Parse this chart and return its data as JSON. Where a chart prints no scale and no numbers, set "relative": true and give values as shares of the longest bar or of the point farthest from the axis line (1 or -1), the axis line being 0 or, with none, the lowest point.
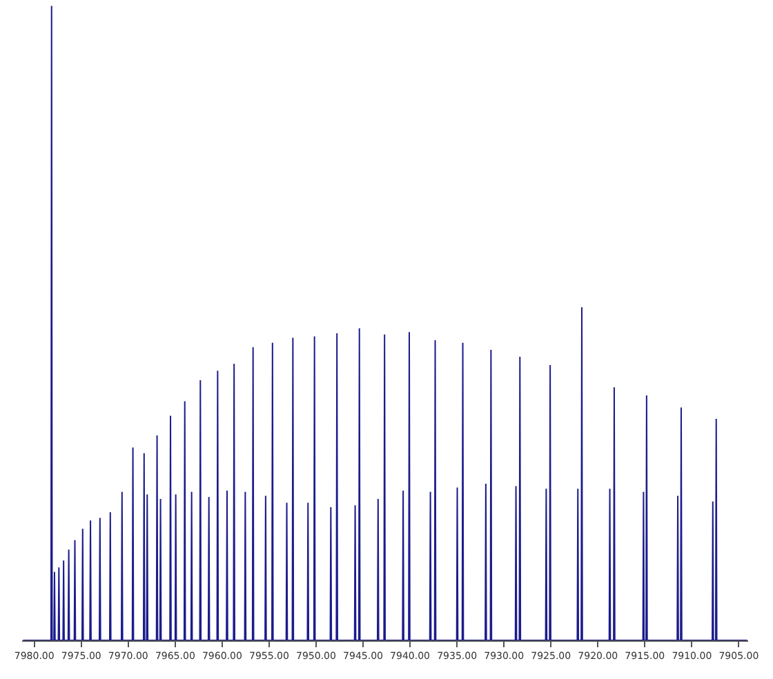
{
  "chart_data": {
    "type": "line",
    "relative": true,
    "line_style": "solid",
    "marker": "none",
    "grid": false,
    "tick_labels": "x",
    "xlim": [
      7981.3,
      7904.0
    ],
    "xticks": [
      {
        "value": 7980,
        "label": "7980.00"
      },
      {
        "value": 7975,
        "label": "7975.00"
      },
      {
        "value": 7970,
        "label": "7970.00"
      },
      {
        "value": 7965,
        "label": "7965.00"
      },
      {
        "value": 7960,
        "label": "7960.00"
      },
      {
        "value": 7955,
        "label": "7955.00"
      },
      {
        "value": 7950,
        "label": "7950.00"
      },
      {
        "value": 7945,
        "label": "7945.00"
      },
      {
        "value": 7940,
        "label": "7940.00"
      },
      {
        "value": 7935,
        "label": "7935.00"
      },
      {
        "value": 7930,
        "label": "7930.00"
      },
      {
        "value": 7925,
        "label": "7925.00"
      },
      {
        "value": 7920,
        "label": "7920.00"
      },
      {
        "value": 7915,
        "label": "7915.00"
      },
      {
        "value": 7910,
        "label": "7910.00"
      },
      {
        "value": 7905,
        "label": "7905.00"
      }
    ],
    "series": [
      {
        "color": "#1c1c8c",
        "x": [
          7981.2,
          7978.22,
          7978.16,
          7978.1,
          7977.91,
          7977.85,
          7977.79,
          7977.44,
          7977.38,
          7977.32,
          7976.94,
          7976.88,
          7976.82,
          7976.39,
          7976.33,
          7976.27,
          7975.74,
          7975.68,
          7975.62,
          7974.91,
          7974.85,
          7974.79,
          7974.08,
          7974.02,
          7973.96,
          7973.07,
          7973.01,
          7972.95,
          7971.97,
          7971.91,
          7971.85,
          7970.72,
          7970.66,
          7970.6,
          7969.56,
          7969.5,
          7969.44,
          7968.37,
          7968.31,
          7968.25,
          7968.04,
          7967.98,
          7967.92,
          7966.99,
          7966.93,
          7966.87,
          7966.62,
          7966.56,
          7966.5,
          7965.56,
          7965.5,
          7965.44,
          7965.0,
          7964.94,
          7964.88,
          7964.04,
          7963.98,
          7963.92,
          7963.31,
          7963.25,
          7963.19,
          7962.38,
          7962.32,
          7962.26,
          7961.47,
          7961.41,
          7961.35,
          7960.54,
          7960.48,
          7960.42,
          7959.54,
          7959.48,
          7959.42,
          7958.79,
          7958.73,
          7958.67,
          7957.6,
          7957.54,
          7957.48,
          7956.77,
          7956.71,
          7956.65,
          7955.43,
          7955.37,
          7955.31,
          7954.7,
          7954.64,
          7954.58,
          7953.18,
          7953.12,
          7953.06,
          7952.53,
          7952.47,
          7952.41,
          7950.92,
          7950.86,
          7950.8,
          7950.23,
          7950.17,
          7950.11,
          7948.49,
          7948.43,
          7948.37,
          7947.84,
          7947.78,
          7947.72,
          7945.9,
          7945.84,
          7945.78,
          7945.45,
          7945.39,
          7945.33,
          7943.46,
          7943.4,
          7943.34,
          7942.77,
          7942.71,
          7942.65,
          7940.79,
          7940.73,
          7940.67,
          7940.14,
          7940.08,
          7940.02,
          7937.89,
          7937.83,
          7937.77,
          7937.38,
          7937.32,
          7937.26,
          7935.03,
          7934.97,
          7934.91,
          7934.44,
          7934.38,
          7934.32,
          7931.99,
          7931.93,
          7931.87,
          7931.44,
          7931.38,
          7931.32,
          7928.78,
          7928.72,
          7928.66,
          7928.36,
          7928.3,
          7928.24,
          7925.56,
          7925.5,
          7925.44,
          7925.14,
          7925.08,
          7925.02,
          7922.19,
          7922.13,
          7922.07,
          7921.77,
          7921.71,
          7921.65,
          7918.79,
          7918.73,
          7918.67,
          7918.32,
          7918.26,
          7918.2,
          7915.2,
          7915.14,
          7915.08,
          7914.87,
          7914.81,
          7914.75,
          7911.55,
          7911.49,
          7911.43,
          7911.19,
          7911.13,
          7911.07,
          7907.82,
          7907.76,
          7907.7,
          7907.46,
          7907.4,
          7907.34,
          7904.1
        ],
        "values": [
          0,
          0,
          1.0,
          0,
          0,
          0.108,
          0,
          0,
          0.115,
          0,
          0,
          0.126,
          0,
          0,
          0.143,
          0,
          0,
          0.158,
          0,
          0,
          0.176,
          0,
          0,
          0.189,
          0,
          0,
          0.193,
          0,
          0,
          0.202,
          0,
          0,
          0.234,
          0,
          0,
          0.304,
          0,
          0,
          0.295,
          0,
          0,
          0.23,
          0,
          0,
          0.323,
          0,
          0,
          0.223,
          0,
          0,
          0.354,
          0,
          0,
          0.23,
          0,
          0,
          0.377,
          0,
          0,
          0.234,
          0,
          0,
          0.41,
          0,
          0,
          0.226,
          0,
          0,
          0.425,
          0,
          0,
          0.236,
          0,
          0,
          0.436,
          0,
          0,
          0.234,
          0,
          0,
          0.462,
          0,
          0,
          0.228,
          0,
          0,
          0.469,
          0,
          0,
          0.217,
          0,
          0,
          0.477,
          0,
          0,
          0.217,
          0,
          0,
          0.479,
          0,
          0,
          0.21,
          0,
          0,
          0.484,
          0,
          0,
          0.213,
          0,
          0,
          0.492,
          0,
          0,
          0.223,
          0,
          0,
          0.482,
          0,
          0,
          0.236,
          0,
          0,
          0.486,
          0,
          0,
          0.234,
          0,
          0,
          0.473,
          0,
          0,
          0.241,
          0,
          0,
          0.469,
          0,
          0,
          0.247,
          0,
          0,
          0.458,
          0,
          0,
          0.243,
          0,
          0,
          0.447,
          0,
          0,
          0.239,
          0,
          0,
          0.434,
          0,
          0,
          0.239,
          0,
          0,
          0.525,
          0,
          0,
          0.239,
          0,
          0,
          0.399,
          0,
          0,
          0.234,
          0,
          0,
          0.386,
          0,
          0,
          0.228,
          0,
          0,
          0.367,
          0,
          0,
          0.219,
          0,
          0,
          0.349,
          0,
          0
        ]
      }
    ]
  }
}
